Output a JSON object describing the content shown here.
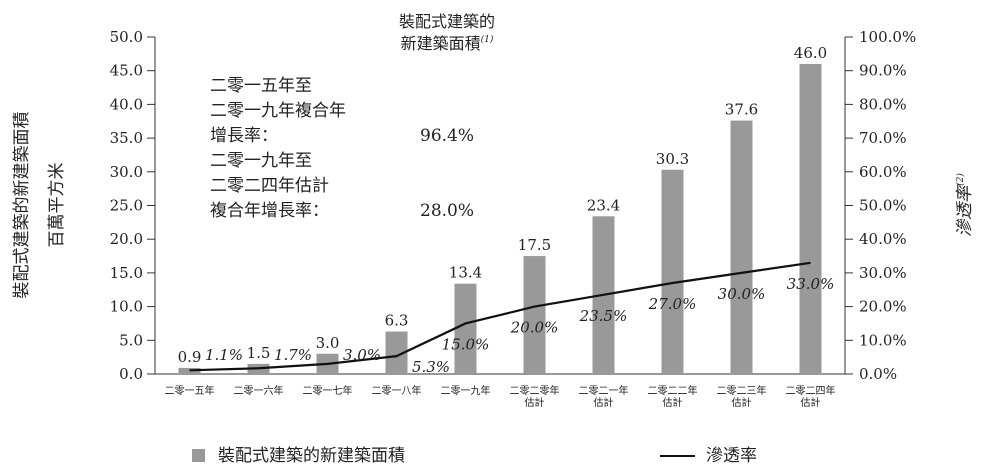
{
  "chart_data": {
    "type": "bar",
    "title": [
      "裝配式建築的",
      "新建築面積"
    ],
    "title_superscript": "(1)",
    "categories": [
      [
        "二零一五年"
      ],
      [
        "二零一六年"
      ],
      [
        "二零一七年"
      ],
      [
        "二零一八年"
      ],
      [
        "二零一九年"
      ],
      [
        "二零二零年",
        "估計"
      ],
      [
        "二零二一年",
        "估計"
      ],
      [
        "二零二二年",
        "估計"
      ],
      [
        "二零二三年",
        "估計"
      ],
      [
        "二零二四年",
        "估計"
      ]
    ],
    "series": [
      {
        "name": "裝配式建築的新建築面積",
        "kind": "bar",
        "axis": "left",
        "color": "#999999",
        "values": [
          0.9,
          1.5,
          3.0,
          6.3,
          13.4,
          17.5,
          23.4,
          30.3,
          37.6,
          46.0
        ],
        "labels": [
          "0.9",
          "1.5",
          "3.0",
          "6.3",
          "13.4",
          "17.5",
          "23.4",
          "30.3",
          "37.6",
          "46.0"
        ]
      },
      {
        "name": "滲透率",
        "kind": "line",
        "axis": "right",
        "color": "#111111",
        "values": [
          1.1,
          1.7,
          3.0,
          5.3,
          15.0,
          20.0,
          23.5,
          27.0,
          30.0,
          33.0
        ],
        "labels": [
          "1.1%",
          "1.7%",
          "3.0%",
          "5.3%",
          "15.0%",
          "20.0%",
          "23.5%",
          "27.0%",
          "30.0%",
          "33.0%"
        ]
      }
    ],
    "y_left": {
      "label_lines": [
        "裝配式建築的新建築面積",
        "百萬平方米"
      ],
      "ylim": [
        0,
        50
      ],
      "ticks": [
        "0.0",
        "5.0",
        "10.0",
        "15.0",
        "20.0",
        "25.0",
        "30.0",
        "35.0",
        "40.0",
        "45.0",
        "50.0"
      ]
    },
    "y_right": {
      "label": "滲透率",
      "label_superscript": "(2)",
      "ylim": [
        0,
        100
      ],
      "ticks": [
        "0.0%",
        "10.0%",
        "20.0%",
        "30.0%",
        "40.0%",
        "50.0%",
        "60.0%",
        "70.0%",
        "80.0%",
        "90.0%",
        "100.0%"
      ]
    },
    "annotations": [
      {
        "lines": [
          "二零一五年至",
          "二零一九年複合年",
          "增長率："
        ],
        "value": "96.4%"
      },
      {
        "lines": [
          "二零一九年至",
          "二零二四年估計",
          "複合年增長率："
        ],
        "value": "28.0%"
      }
    ],
    "legend": {
      "placement": "bottom",
      "items": [
        "裝配式建築的新建築面積",
        "滲透率"
      ]
    },
    "grid": false
  }
}
